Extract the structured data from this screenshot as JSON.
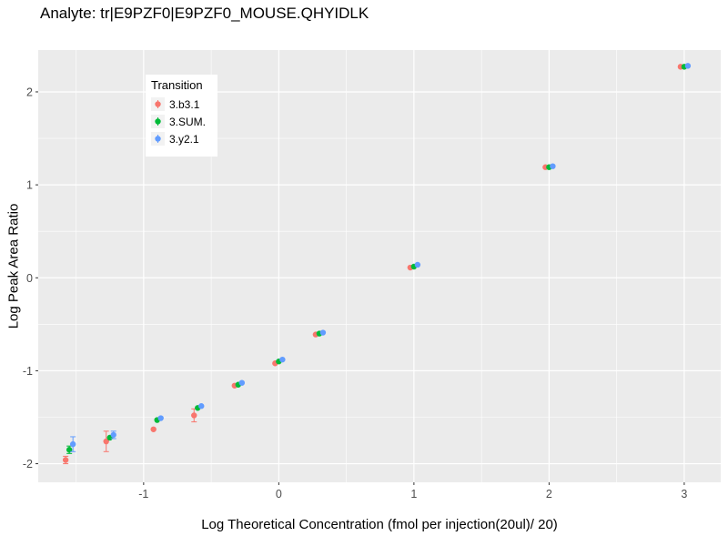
{
  "chart_data": {
    "type": "scatter",
    "title": "Analyte: tr|E9PZF0|E9PZF0_MOUSE.QHYIDLK",
    "xlabel": "Log Theoretical Concentration (fmol per injection(20ul)/ 20)",
    "ylabel": "Log Peak Area Ratio",
    "legend_title": "Transition",
    "legend_position": "inside-top-left",
    "grid": true,
    "panel_bg": "#EBEBEB",
    "grid_color": "#FFFFFF",
    "tick_color": "#333333",
    "tick_label_color": "#4D4D4D",
    "xlim": [
      -1.78,
      3.27
    ],
    "ylim": [
      -2.2,
      2.45
    ],
    "xticks": [
      -1,
      0,
      1,
      2,
      3
    ],
    "yticks": [
      -2,
      -1,
      0,
      1,
      2
    ],
    "x": [
      -1.55,
      -1.25,
      -0.9,
      -0.6,
      -0.3,
      0,
      0.3,
      1,
      2,
      3
    ],
    "dodge": 0.027,
    "series": [
      {
        "name": "3.b3.1",
        "color": "#F8766D",
        "y": [
          -1.96,
          -1.76,
          -1.63,
          -1.48,
          -1.16,
          -0.92,
          -0.61,
          0.11,
          1.19,
          2.27
        ],
        "err": [
          0.04,
          0.11,
          0.02,
          0.07,
          0.02,
          0.02,
          0.015,
          0.01,
          0.005,
          0.01
        ]
      },
      {
        "name": "3.SUM.",
        "color": "#00BA38",
        "y": [
          -1.85,
          -1.72,
          -1.53,
          -1.4,
          -1.15,
          -0.9,
          -0.6,
          0.12,
          1.19,
          2.27
        ],
        "err": [
          0.04,
          0.02,
          0.02,
          0.02,
          0.01,
          0.01,
          0.01,
          0.005,
          0.005,
          0.005
        ]
      },
      {
        "name": "3.y2.1",
        "color": "#619CFF",
        "y": [
          -1.79,
          -1.69,
          -1.51,
          -1.38,
          -1.13,
          -0.88,
          -0.59,
          0.14,
          1.2,
          2.28
        ],
        "err": [
          0.08,
          0.04,
          0.02,
          0.02,
          0.01,
          0.01,
          0.01,
          0.005,
          0.005,
          0.005
        ]
      }
    ]
  }
}
